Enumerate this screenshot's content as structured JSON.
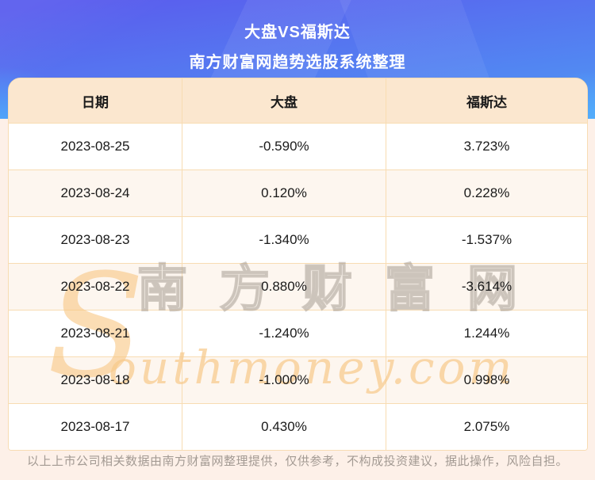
{
  "header": {
    "title": "大盘VS福斯达",
    "subtitle": "南方财富网趋势选股系统整理"
  },
  "chart_data": {
    "type": "table",
    "title": "大盘VS福斯达",
    "subtitle": "南方财富网趋势选股系统整理",
    "columns": [
      "日期",
      "大盘",
      "福斯达"
    ],
    "rows": [
      [
        "2023-08-25",
        "-0.590%",
        "3.723%"
      ],
      [
        "2023-08-24",
        "0.120%",
        "0.228%"
      ],
      [
        "2023-08-23",
        "-1.340%",
        "-1.537%"
      ],
      [
        "2023-08-22",
        "0.880%",
        "-3.614%"
      ],
      [
        "2023-08-21",
        "-1.240%",
        "1.244%"
      ],
      [
        "2023-08-18",
        "-1.000%",
        "0.998%"
      ],
      [
        "2023-08-17",
        "0.430%",
        "2.075%"
      ]
    ]
  },
  "watermark": {
    "initial": "S",
    "cn_chars": [
      "南",
      "方",
      "财",
      "富",
      "网"
    ],
    "latin": "outhmoney.com"
  },
  "footer": {
    "disclaimer": "以上上市公司相关数据由南方财富网整理提供，仅供参考，不构成投资建议，据此操作，风险自担。"
  },
  "colors": {
    "blue_top": "#5a5ded",
    "blue_bottom": "#4f96f4",
    "title_text": "#ffffff",
    "page_bg": "#fdf0e8",
    "header_bg": "#fbe7cf",
    "row_alt_bg": "#fdf6ef",
    "border": "#f8dcb2",
    "text_dark": "#1a1a1a",
    "footer_text": "#a39a93",
    "watermark_orange": "#f8c682",
    "watermark_gray": "#a89e94"
  }
}
